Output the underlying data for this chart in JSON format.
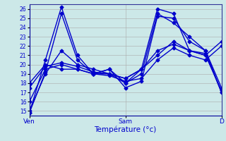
{
  "xlabel": "Température (°c)",
  "background_color": "#cce8e8",
  "grid_color": "#aaaaaa",
  "line_color": "#0000cc",
  "marker": "D",
  "markersize": 2.5,
  "linewidth": 1.0,
  "ylim": [
    14.5,
    26.5
  ],
  "yticks": [
    15,
    16,
    17,
    18,
    19,
    20,
    21,
    22,
    23,
    24,
    25,
    26
  ],
  "xtick_labels": [
    "Ven",
    "Sam",
    "D"
  ],
  "xtick_positions": [
    0,
    12,
    24
  ],
  "x_total": 24,
  "series": [
    [
      14.8,
      20.5,
      26.2,
      21.0,
      19.0,
      19.5,
      17.5,
      18.2,
      25.2,
      25.0,
      22.5,
      21.5,
      17.0
    ],
    [
      14.8,
      19.2,
      25.5,
      20.5,
      19.0,
      19.0,
      18.5,
      19.5,
      26.0,
      25.5,
      21.5,
      21.0,
      17.2
    ],
    [
      15.0,
      19.0,
      21.5,
      20.0,
      19.5,
      19.0,
      18.0,
      19.0,
      25.5,
      24.5,
      23.0,
      21.5,
      17.5
    ],
    [
      16.0,
      19.5,
      20.0,
      19.5,
      19.0,
      19.5,
      18.0,
      19.5,
      21.5,
      22.2,
      21.5,
      21.2,
      17.0
    ],
    [
      17.5,
      19.8,
      20.2,
      19.8,
      19.2,
      19.0,
      18.5,
      19.5,
      21.0,
      22.5,
      21.5,
      21.0,
      22.5
    ],
    [
      18.0,
      20.0,
      19.5,
      19.5,
      19.0,
      18.8,
      18.2,
      18.5,
      20.5,
      21.8,
      21.0,
      20.5,
      22.0
    ]
  ]
}
